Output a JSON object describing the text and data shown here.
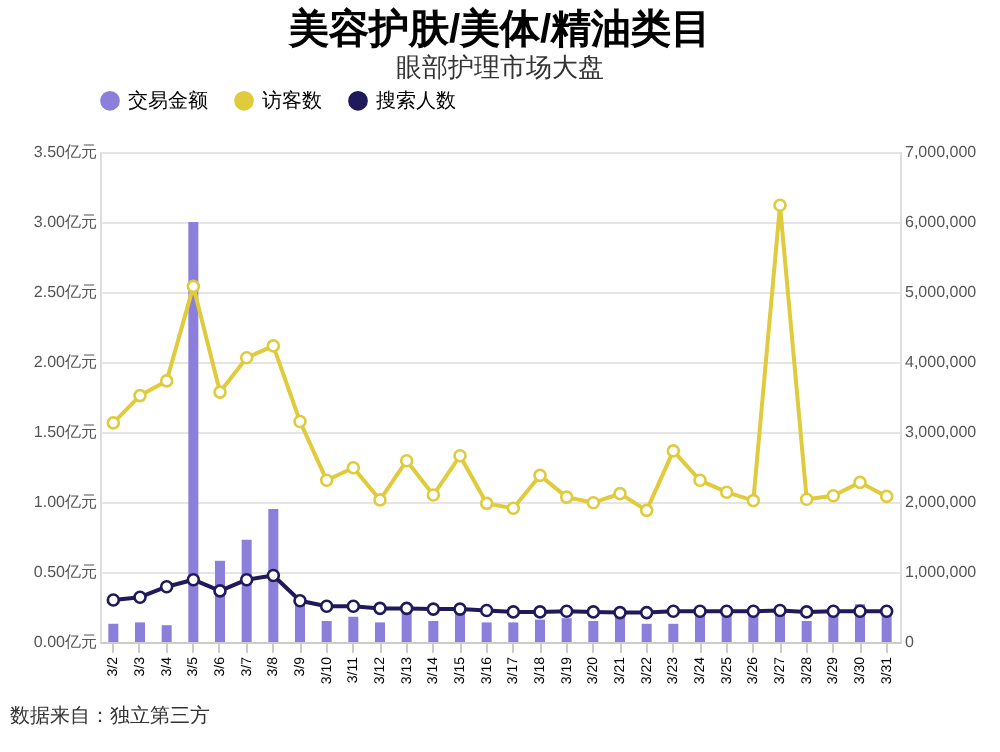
{
  "chart_data": {
    "type": "bar",
    "title": "美容护肤/美体/精油类目",
    "subtitle": "眼部护理市场大盘",
    "categories": [
      "3/2",
      "3/3",
      "3/4",
      "3/5",
      "3/6",
      "3/7",
      "3/8",
      "3/9",
      "3/10",
      "3/11",
      "3/12",
      "3/13",
      "3/14",
      "3/15",
      "3/16",
      "3/17",
      "3/18",
      "3/19",
      "3/20",
      "3/21",
      "3/22",
      "3/23",
      "3/24",
      "3/25",
      "3/26",
      "3/27",
      "3/28",
      "3/29",
      "3/30",
      "3/31"
    ],
    "series": [
      {
        "name": "交易金额",
        "color": "#8b7fdb",
        "values": [
          0.13,
          0.14,
          0.12,
          3.0,
          0.58,
          0.73,
          0.95,
          0.29,
          0.15,
          0.18,
          0.14,
          0.25,
          0.15,
          0.23,
          0.14,
          0.14,
          0.16,
          0.17,
          0.15,
          0.19,
          0.13,
          0.13,
          0.21,
          0.2,
          0.21,
          0.2,
          0.15,
          0.2,
          0.27,
          0.21
        ]
      },
      {
        "name": "访客数",
        "type": "line",
        "axis": "y2",
        "color": "#e0cb3c",
        "values": [
          3130000,
          3520000,
          3730000,
          5080000,
          3570000,
          4060000,
          4230000,
          3150000,
          2310000,
          2490000,
          2030000,
          2590000,
          2100000,
          2660000,
          1980000,
          1910000,
          2380000,
          2070000,
          1990000,
          2120000,
          1880000,
          2730000,
          2310000,
          2140000,
          2020000,
          6240000,
          2040000,
          2090000,
          2280000,
          2080000
        ]
      },
      {
        "name": "搜索人数",
        "type": "line",
        "axis": "y2",
        "color": "#1f1a5a",
        "values": [
          600000,
          640000,
          790000,
          890000,
          730000,
          890000,
          950000,
          590000,
          510000,
          510000,
          480000,
          480000,
          470000,
          470000,
          450000,
          430000,
          430000,
          440000,
          430000,
          420000,
          420000,
          440000,
          440000,
          440000,
          440000,
          450000,
          430000,
          440000,
          440000,
          440000
        ]
      }
    ],
    "ylim": [
      0,
      3.5
    ],
    "yticks": [
      {
        "value": 0,
        "label": "0.00亿元"
      },
      {
        "value": 0.5,
        "label": "0.50亿元"
      },
      {
        "value": 1,
        "label": "1.00亿元"
      },
      {
        "value": 1.5,
        "label": "1.50亿元"
      },
      {
        "value": 2,
        "label": "2.00亿元"
      },
      {
        "value": 2.5,
        "label": "2.50亿元"
      },
      {
        "value": 3,
        "label": "3.00亿元"
      },
      {
        "value": 3.5,
        "label": "3.50亿元"
      }
    ],
    "y2lim": [
      0,
      7000000
    ],
    "y2ticks": [
      0,
      {
        "value": 1000000,
        "label": "1,000,000"
      },
      {
        "value": 2000000,
        "label": "2,000,000"
      },
      {
        "value": 3000000,
        "label": "3,000,000"
      },
      {
        "value": 4000000,
        "label": "4,000,000"
      },
      {
        "value": 5000000,
        "label": "5,000,000"
      },
      {
        "value": 6000000,
        "label": "6,000,000"
      },
      {
        "value": 7000000,
        "label": "7,000,000"
      }
    ],
    "grid": "y",
    "legend": "top",
    "marker": "circle",
    "line_style": "solid",
    "annotations": [
      "数据来自：独立第三方"
    ]
  }
}
